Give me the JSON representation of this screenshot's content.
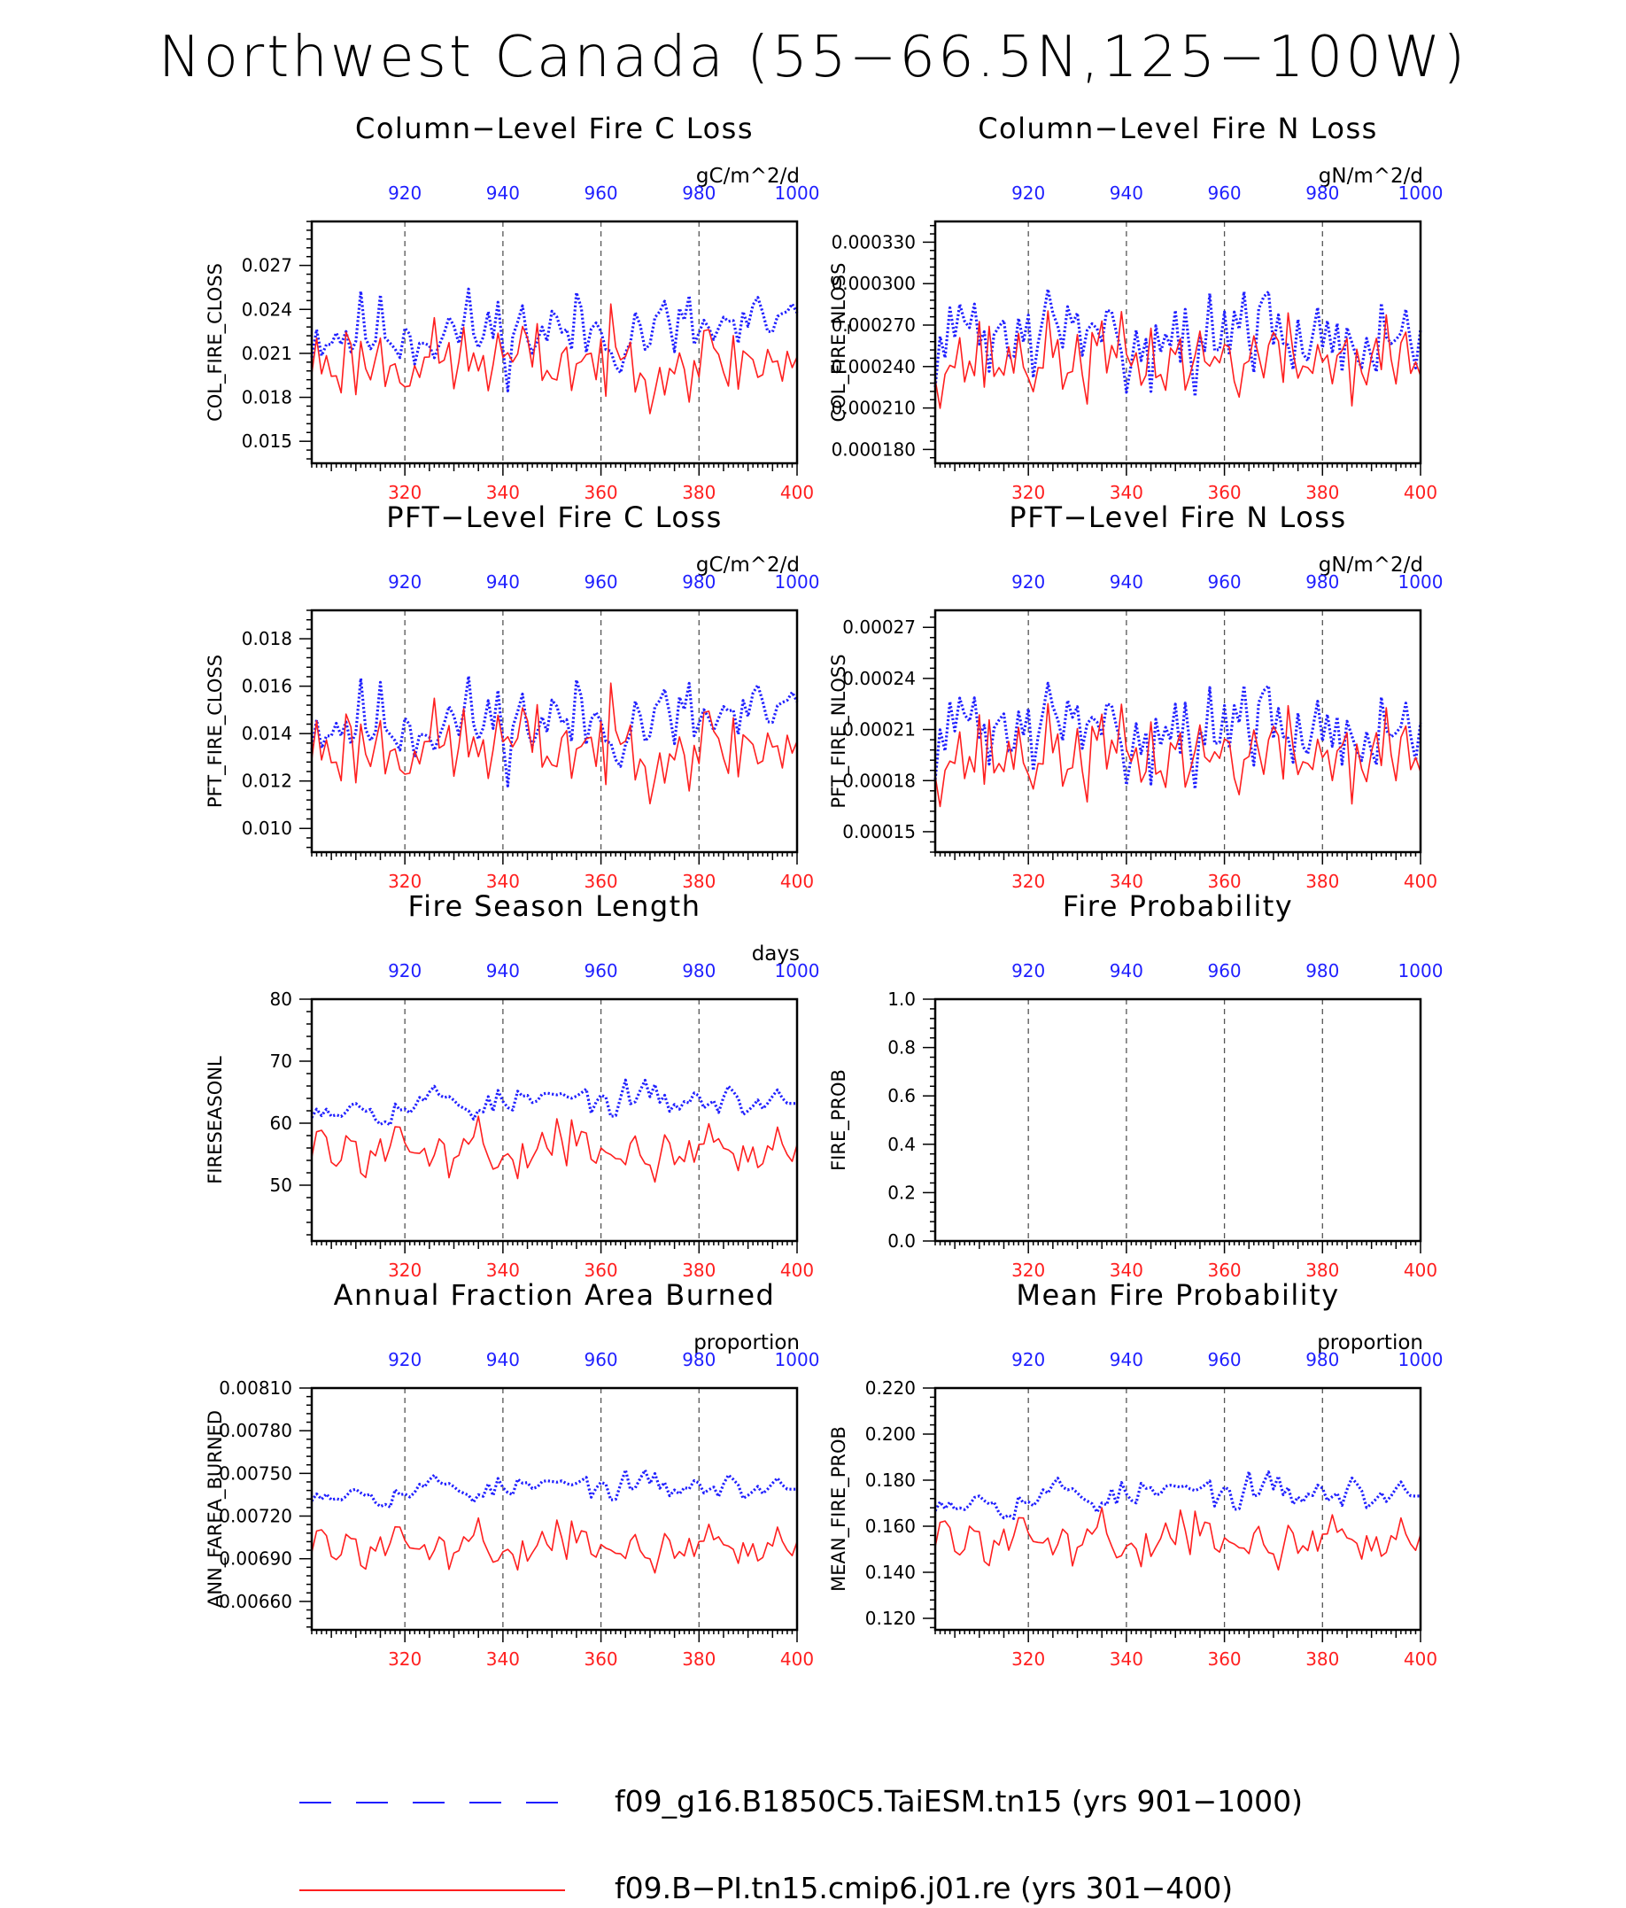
{
  "page": {
    "title": "Northwest Canada (55−66.5N,125−100W)"
  },
  "colors": {
    "series_a": "#1f1fff",
    "series_b": "#ff1f1f",
    "axis": "#000000",
    "ref_line": "#555555"
  },
  "legend": {
    "items": [
      {
        "label": "f09_g16.B1850C5.TaiESM.tn15 (yrs 901−1000)",
        "style": "dashed-blue"
      },
      {
        "label": "f09.B−PI.tn15.cmip6.j01.re (yrs 301−400)",
        "style": "solid-red"
      }
    ]
  },
  "chart_data": [
    {
      "type": "line",
      "title": "Column−Level Fire C Loss",
      "units": "gC/m^2/d",
      "ylabel": "COL_FIRE_CLOSS",
      "ylim": [
        0.0135,
        0.03
      ],
      "yticks": [
        "0.015",
        "0.018",
        "0.021",
        "0.024",
        "0.027"
      ],
      "top_axis": {
        "ticks": [
          "920",
          "940",
          "960",
          "980",
          "1000"
        ],
        "range": [
          901,
          1000
        ]
      },
      "bottom_axis": {
        "ticks": [
          "320",
          "340",
          "360",
          "380",
          "400"
        ],
        "range": [
          301,
          400
        ]
      },
      "ref_lines": [
        320,
        340,
        360,
        380
      ],
      "series": [
        {
          "base": 0.0225,
          "amp": 0.003,
          "seed": 11,
          "smooth": 0.15,
          "style": "dotted"
        },
        {
          "base": 0.0205,
          "amp": 0.0025,
          "seed": 23,
          "smooth": 0.0,
          "style": "solid"
        }
      ]
    },
    {
      "type": "line",
      "title": "Column−Level Fire N Loss",
      "units": "gN/m^2/d",
      "ylabel": "COL_FIRE_NLOSS",
      "ylim": [
        0.00017,
        0.000345
      ],
      "yticks": [
        "0.000180",
        "0.000210",
        "0.000240",
        "0.000270",
        "0.000300",
        "0.000330"
      ],
      "top_axis": {
        "ticks": [
          "920",
          "940",
          "960",
          "980",
          "1000"
        ],
        "range": [
          901,
          1000
        ]
      },
      "bottom_axis": {
        "ticks": [
          "320",
          "340",
          "360",
          "380",
          "400"
        ],
        "range": [
          301,
          400
        ]
      },
      "ref_lines": [
        320,
        340,
        360,
        380
      ],
      "series": [
        {
          "base": 0.000262,
          "amp": 3.5e-05,
          "seed": 31,
          "smooth": 0.15,
          "style": "dotted"
        },
        {
          "base": 0.000245,
          "amp": 2.8e-05,
          "seed": 37,
          "smooth": 0.0,
          "style": "solid"
        }
      ]
    },
    {
      "type": "line",
      "title": "PFT−Level Fire C Loss",
      "units": "gC/m^2/d",
      "ylabel": "PFT_FIRE_CLOSS",
      "ylim": [
        0.009,
        0.0192
      ],
      "yticks": [
        "0.010",
        "0.012",
        "0.014",
        "0.016",
        "0.018"
      ],
      "top_axis": {
        "ticks": [
          "920",
          "940",
          "960",
          "980",
          "1000"
        ],
        "range": [
          901,
          1000
        ]
      },
      "bottom_axis": {
        "ticks": [
          "320",
          "340",
          "360",
          "380",
          "400"
        ],
        "range": [
          301,
          400
        ]
      },
      "ref_lines": [
        320,
        340,
        360,
        380
      ],
      "series": [
        {
          "base": 0.0145,
          "amp": 0.002,
          "seed": 11,
          "smooth": 0.15,
          "style": "dotted"
        },
        {
          "base": 0.0135,
          "amp": 0.0017,
          "seed": 23,
          "smooth": 0.0,
          "style": "solid"
        }
      ]
    },
    {
      "type": "line",
      "title": "PFT−Level Fire N Loss",
      "units": "gN/m^2/d",
      "ylabel": "PFT_FIRE_NLOSS",
      "ylim": [
        0.000138,
        0.00028
      ],
      "yticks": [
        "0.00015",
        "0.00018",
        "0.00021",
        "0.00024",
        "0.00027"
      ],
      "top_axis": {
        "ticks": [
          "920",
          "940",
          "960",
          "980",
          "1000"
        ],
        "range": [
          901,
          1000
        ]
      },
      "bottom_axis": {
        "ticks": [
          "320",
          "340",
          "360",
          "380",
          "400"
        ],
        "range": [
          301,
          400
        ]
      },
      "ref_lines": [
        320,
        340,
        360,
        380
      ],
      "series": [
        {
          "base": 0.00021,
          "amp": 2.8e-05,
          "seed": 31,
          "smooth": 0.15,
          "style": "dotted"
        },
        {
          "base": 0.000195,
          "amp": 2.4e-05,
          "seed": 37,
          "smooth": 0.0,
          "style": "solid"
        }
      ]
    },
    {
      "type": "line",
      "title": "Fire Season Length",
      "units": "days",
      "ylabel": "FIRESEASONL",
      "ylim": [
        41,
        80
      ],
      "yticks": [
        "50",
        "60",
        "70",
        "80"
      ],
      "top_axis": {
        "ticks": [
          "920",
          "940",
          "960",
          "980",
          "1000"
        ],
        "range": [
          901,
          1000
        ]
      },
      "bottom_axis": {
        "ticks": [
          "320",
          "340",
          "360",
          "380",
          "400"
        ],
        "range": [
          301,
          400
        ]
      },
      "ref_lines": [
        320,
        340,
        360,
        380
      ],
      "series": [
        {
          "base": 63.5,
          "amp": 5.0,
          "seed": 53,
          "smooth": 0.55,
          "style": "dotted"
        },
        {
          "base": 56.0,
          "amp": 5.5,
          "seed": 59,
          "smooth": 0.35,
          "style": "solid"
        }
      ]
    },
    {
      "type": "line",
      "title": "Fire Probability",
      "units": "",
      "ylabel": "FIRE_PROB",
      "ylim": [
        0.0,
        1.0
      ],
      "yticks": [
        "0.0",
        "0.2",
        "0.4",
        "0.6",
        "0.8",
        "1.0"
      ],
      "top_axis": {
        "ticks": [
          "920",
          "940",
          "960",
          "980",
          "1000"
        ],
        "range": [
          901,
          1000
        ]
      },
      "bottom_axis": {
        "ticks": [
          "320",
          "340",
          "360",
          "380",
          "400"
        ],
        "range": [
          301,
          400
        ]
      },
      "ref_lines": [
        320,
        340,
        360,
        380
      ],
      "series": []
    },
    {
      "type": "line",
      "title": "Annual Fraction Area Burned",
      "units": "proportion",
      "ylabel": "ANN_FAREA_BURNED",
      "ylim": [
        0.0064,
        0.0081
      ],
      "yticks": [
        "0.00660",
        "0.00690",
        "0.00720",
        "0.00750",
        "0.00780",
        "0.00810"
      ],
      "top_axis": {
        "ticks": [
          "920",
          "940",
          "960",
          "980",
          "1000"
        ],
        "range": [
          901,
          1000
        ]
      },
      "bottom_axis": {
        "ticks": [
          "320",
          "340",
          "360",
          "380",
          "400"
        ],
        "range": [
          301,
          400
        ]
      },
      "ref_lines": [
        320,
        340,
        360,
        380
      ],
      "series": [
        {
          "base": 0.0074,
          "amp": 0.00018,
          "seed": 53,
          "smooth": 0.55,
          "style": "dotted"
        },
        {
          "base": 0.007,
          "amp": 0.0002,
          "seed": 59,
          "smooth": 0.35,
          "style": "solid"
        }
      ]
    },
    {
      "type": "line",
      "title": "Mean Fire Probability",
      "units": "proportion",
      "ylabel": "MEAN_FIRE_PROB",
      "ylim": [
        0.115,
        0.22
      ],
      "yticks": [
        "0.120",
        "0.140",
        "0.160",
        "0.180",
        "0.200",
        "0.220"
      ],
      "top_axis": {
        "ticks": [
          "920",
          "940",
          "960",
          "980",
          "1000"
        ],
        "range": [
          901,
          1000
        ]
      },
      "bottom_axis": {
        "ticks": [
          "320",
          "340",
          "360",
          "380",
          "400"
        ],
        "range": [
          301,
          400
        ]
      },
      "ref_lines": [
        320,
        340,
        360,
        380
      ],
      "series": [
        {
          "base": 0.174,
          "amp": 0.014,
          "seed": 53,
          "smooth": 0.55,
          "style": "dotted"
        },
        {
          "base": 0.155,
          "amp": 0.014,
          "seed": 59,
          "smooth": 0.35,
          "style": "solid"
        }
      ]
    }
  ]
}
